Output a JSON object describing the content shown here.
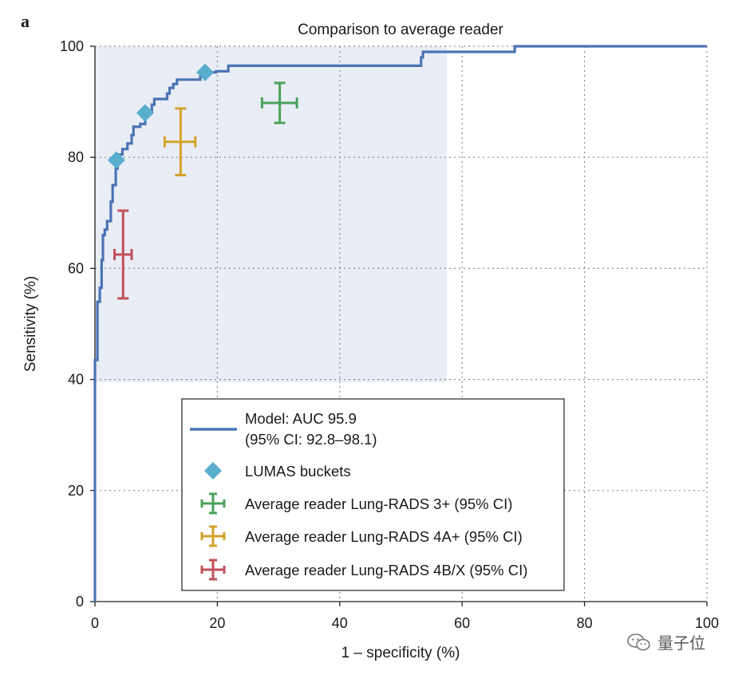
{
  "panel_label": "a",
  "watermark": "量子位",
  "chart_data": {
    "type": "line",
    "title": "Comparison to average reader",
    "xlabel": "1 – specificity (%)",
    "ylabel": "Sensitivity (%)",
    "xlim": [
      0,
      100
    ],
    "ylim": [
      0,
      100
    ],
    "xticks": [
      0,
      20,
      40,
      60,
      80,
      100
    ],
    "yticks": [
      0,
      20,
      40,
      60,
      80,
      100
    ],
    "grid": true,
    "shaded_region": {
      "x": [
        0,
        57.5
      ],
      "y": [
        39.5,
        100
      ],
      "color": "#e9edf5"
    },
    "colors": {
      "model": "#4a74b4",
      "lumas": "#5aaecd",
      "rads3": "#4aa35c",
      "rads4a": "#d4a22a",
      "rads4b": "#c0505a"
    },
    "roc_curve": {
      "name": "Model: AUC 95.9",
      "name_line2": "(95% CI: 92.8–98.1)",
      "points": [
        [
          0,
          0
        ],
        [
          0,
          43.5
        ],
        [
          0.4,
          43.5
        ],
        [
          0.4,
          54
        ],
        [
          0.8,
          54
        ],
        [
          0.8,
          56.5
        ],
        [
          1.1,
          56.5
        ],
        [
          1.1,
          61.5
        ],
        [
          1.3,
          61.5
        ],
        [
          1.3,
          66
        ],
        [
          1.6,
          66
        ],
        [
          1.6,
          67
        ],
        [
          2,
          67
        ],
        [
          2,
          68.5
        ],
        [
          2.6,
          68.5
        ],
        [
          2.6,
          72
        ],
        [
          2.9,
          72
        ],
        [
          2.9,
          75
        ],
        [
          3.4,
          75
        ],
        [
          3.4,
          78
        ],
        [
          3.7,
          78
        ],
        [
          3.7,
          79.5
        ],
        [
          4.1,
          79.5
        ],
        [
          4.1,
          80.5
        ],
        [
          4.5,
          80.5
        ],
        [
          4.5,
          81.5
        ],
        [
          5.3,
          81.5
        ],
        [
          5.3,
          82.5
        ],
        [
          6,
          82.5
        ],
        [
          6,
          84
        ],
        [
          6.3,
          84
        ],
        [
          6.3,
          85.5
        ],
        [
          7.4,
          85.5
        ],
        [
          7.4,
          86
        ],
        [
          8.2,
          86
        ],
        [
          8.2,
          88
        ],
        [
          9.3,
          88
        ],
        [
          9.3,
          89.5
        ],
        [
          9.7,
          89.5
        ],
        [
          9.7,
          90.5
        ],
        [
          11.8,
          90.5
        ],
        [
          11.8,
          91.5
        ],
        [
          12.2,
          91.5
        ],
        [
          12.2,
          92.5
        ],
        [
          12.8,
          92.5
        ],
        [
          12.8,
          93.2
        ],
        [
          13.4,
          93.2
        ],
        [
          13.4,
          94
        ],
        [
          17.2,
          94
        ],
        [
          17.2,
          94.5
        ],
        [
          17.8,
          94.5
        ],
        [
          17.8,
          95.3
        ],
        [
          19.8,
          95.3
        ],
        [
          19.8,
          95.5
        ],
        [
          21.8,
          95.5
        ],
        [
          21.8,
          96.5
        ],
        [
          53.3,
          96.5
        ],
        [
          53.3,
          98
        ],
        [
          53.6,
          98
        ],
        [
          53.6,
          99
        ],
        [
          68.6,
          99
        ],
        [
          68.6,
          100
        ],
        [
          100,
          100
        ]
      ]
    },
    "series": [
      {
        "name": "LUMAS buckets",
        "marker": "diamond",
        "points": [
          [
            3.5,
            79.5
          ],
          [
            8.2,
            88
          ],
          [
            18,
            95.3
          ]
        ]
      },
      {
        "name": "Average reader Lung-RADS 3+ (95% CI)",
        "marker": "errorbar",
        "x": 30.2,
        "y": 89.8,
        "x_ci": [
          27.3,
          33.0
        ],
        "y_ci": [
          86.2,
          93.4
        ]
      },
      {
        "name": "Average reader Lung-RADS 4A+ (95% CI)",
        "marker": "errorbar",
        "x": 14.0,
        "y": 82.8,
        "x_ci": [
          11.4,
          16.4
        ],
        "y_ci": [
          76.8,
          88.8
        ]
      },
      {
        "name": "Average reader Lung-RADS 4B/X (95% CI)",
        "marker": "errorbar",
        "x": 4.6,
        "y": 62.5,
        "x_ci": [
          3.2,
          6.0
        ],
        "y_ci": [
          54.6,
          70.4
        ]
      }
    ],
    "legend": {
      "position": "lower-center",
      "entries": [
        "Model: AUC 95.9",
        "(95% CI: 92.8–98.1)",
        "LUMAS buckets",
        "Average reader Lung-RADS 3+ (95% CI)",
        "Average reader Lung-RADS 4A+ (95% CI)",
        "Average reader Lung-RADS 4B/X (95% CI)"
      ]
    }
  }
}
